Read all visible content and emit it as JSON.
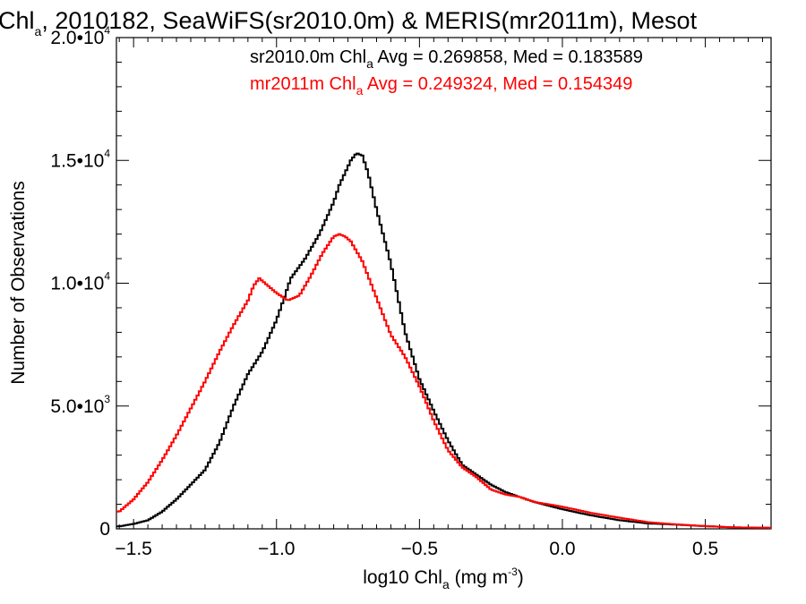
{
  "chart_data": {
    "type": "line",
    "title": {
      "part1": "Chl",
      "sub": "a",
      "part2": ", 2010182, SeaWiFS(sr2010.0m) & MERIS(mr2011m), Mesot"
    },
    "xlabel": {
      "pre": "log10 Chl",
      "sub": "a",
      "mid": " (mg m",
      "sup": "-3",
      "post": ")"
    },
    "ylabel": "Number of Observations",
    "xlim": [
      -1.56,
      0.73
    ],
    "ylim": [
      0,
      20000
    ],
    "x_ticks": [
      {
        "value": -1.5,
        "label": "−1.5"
      },
      {
        "value": -1.0,
        "label": "−1.0"
      },
      {
        "value": -0.5,
        "label": "−0.5"
      },
      {
        "value": 0.0,
        "label": "0.0"
      },
      {
        "value": 0.5,
        "label": "0.5"
      }
    ],
    "y_ticks": [
      {
        "value": 0,
        "mant": "0",
        "exp": ""
      },
      {
        "value": 5000,
        "mant": "5.0•10",
        "exp": "3"
      },
      {
        "value": 10000,
        "mant": "1.0•10",
        "exp": "4"
      },
      {
        "value": 15000,
        "mant": "1.5•10",
        "exp": "4"
      },
      {
        "value": 20000,
        "mant": "2.0•10",
        "exp": "4"
      }
    ],
    "grid": false,
    "legend_position": "top-right",
    "colors": {
      "seawifs": "#000000",
      "meris": "#ff0000"
    },
    "series": [
      {
        "key": "seawifs",
        "legend": {
          "pre": "sr2010.0m Chl",
          "sub": "a",
          "post": " Avg = 0.269858, Med = 0.183589"
        },
        "x": [
          -1.55,
          -1.5,
          -1.45,
          -1.4,
          -1.35,
          -1.3,
          -1.25,
          -1.2,
          -1.15,
          -1.1,
          -1.05,
          -1.0,
          -0.95,
          -0.9,
          -0.85,
          -0.8,
          -0.78,
          -0.76,
          -0.74,
          -0.72,
          -0.7,
          -0.68,
          -0.65,
          -0.6,
          -0.55,
          -0.5,
          -0.45,
          -0.4,
          -0.35,
          -0.3,
          -0.25,
          -0.2,
          -0.1,
          0.0,
          0.1,
          0.2,
          0.3,
          0.4,
          0.5,
          0.6,
          0.73
        ],
        "y": [
          100,
          200,
          350,
          700,
          1200,
          1800,
          2400,
          3500,
          5000,
          6300,
          7200,
          8500,
          10200,
          11000,
          12000,
          13300,
          14000,
          14500,
          15000,
          15300,
          15200,
          14500,
          13000,
          10800,
          8000,
          6100,
          4800,
          3600,
          2600,
          2200,
          1800,
          1500,
          1100,
          800,
          550,
          350,
          220,
          170,
          110,
          60,
          40
        ]
      },
      {
        "key": "meris",
        "legend": {
          "pre": "mr2011m Chl",
          "sub": "a",
          "post": " Avg = 0.249324, Med = 0.154349"
        },
        "x": [
          -1.55,
          -1.5,
          -1.45,
          -1.4,
          -1.35,
          -1.3,
          -1.25,
          -1.2,
          -1.15,
          -1.1,
          -1.08,
          -1.06,
          -1.04,
          -1.02,
          -1.0,
          -0.96,
          -0.92,
          -0.88,
          -0.84,
          -0.8,
          -0.78,
          -0.76,
          -0.74,
          -0.7,
          -0.65,
          -0.6,
          -0.55,
          -0.5,
          -0.45,
          -0.4,
          -0.35,
          -0.3,
          -0.25,
          -0.2,
          -0.15,
          -0.1,
          -0.05,
          0.0,
          0.1,
          0.2,
          0.3,
          0.4,
          0.5,
          0.6,
          0.73
        ],
        "y": [
          700,
          1200,
          1900,
          2800,
          3800,
          4900,
          6000,
          7200,
          8300,
          9300,
          9900,
          10200,
          10000,
          9800,
          9600,
          9300,
          9500,
          10300,
          11200,
          11900,
          12000,
          11900,
          11700,
          10900,
          9400,
          7900,
          7000,
          5800,
          4400,
          3200,
          2500,
          2100,
          1600,
          1400,
          1300,
          1100,
          1000,
          900,
          650,
          450,
          270,
          180,
          110,
          60,
          40
        ]
      }
    ]
  }
}
